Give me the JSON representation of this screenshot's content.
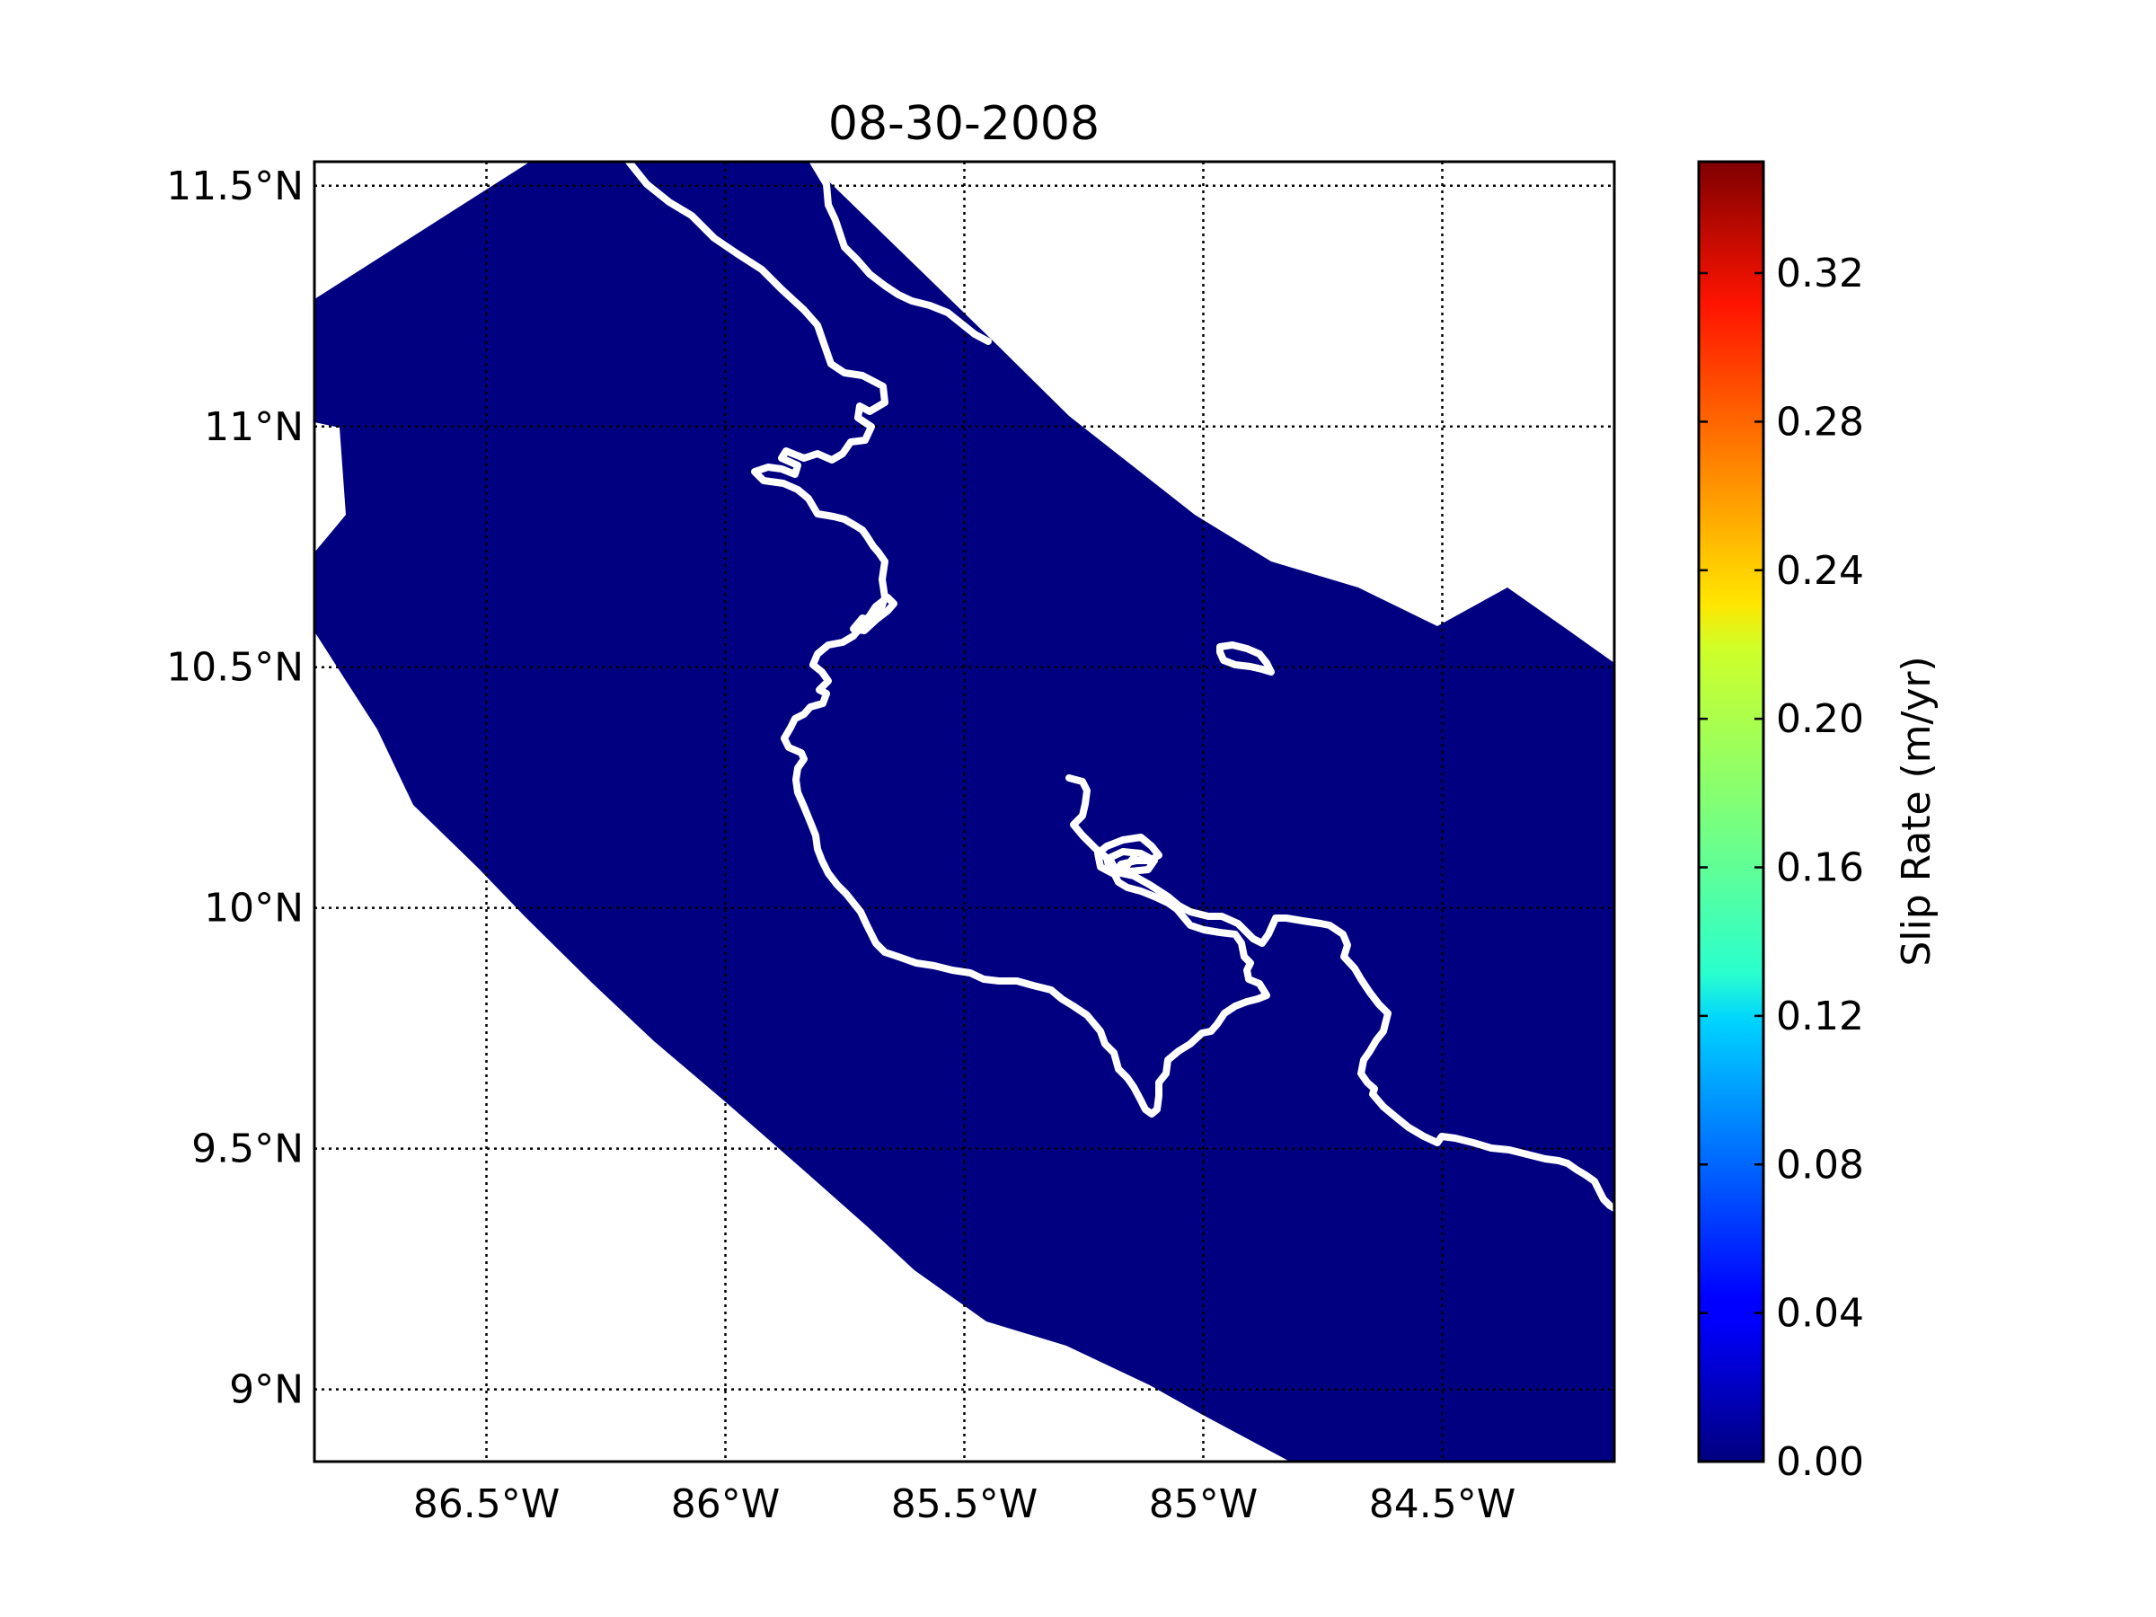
{
  "map": {
    "title": "08-30-2008",
    "lon_range": [
      -86.86,
      -84.14
    ],
    "lat_range": [
      8.85,
      11.55
    ],
    "meridian_labels": [
      "86.5°W",
      "86°W",
      "85.5°W",
      "85°W",
      "84.5°W"
    ],
    "parallel_labels": [
      "11.5°N",
      "11°N",
      "10.5°N",
      "10°N",
      "9.5°N",
      "9°N"
    ],
    "meridians": [
      -86.5,
      -86.0,
      -85.5,
      -85.0,
      -84.5
    ],
    "parallels": [
      11.5,
      11.0,
      10.5,
      10.0,
      9.5,
      9.0
    ],
    "field_color": "#000080",
    "coastline_color": "#ffffff"
  },
  "colorbar": {
    "label": "Slip Rate (m/yr)",
    "colormap": "jet",
    "range": [
      0.0,
      0.35
    ],
    "tick_labels": [
      "0.00",
      "0.04",
      "0.08",
      "0.12",
      "0.16",
      "0.20",
      "0.24",
      "0.28",
      "0.32"
    ],
    "tick_values": [
      0.0,
      0.04,
      0.08,
      0.12,
      0.16,
      0.2,
      0.24,
      0.28,
      0.32
    ]
  }
}
